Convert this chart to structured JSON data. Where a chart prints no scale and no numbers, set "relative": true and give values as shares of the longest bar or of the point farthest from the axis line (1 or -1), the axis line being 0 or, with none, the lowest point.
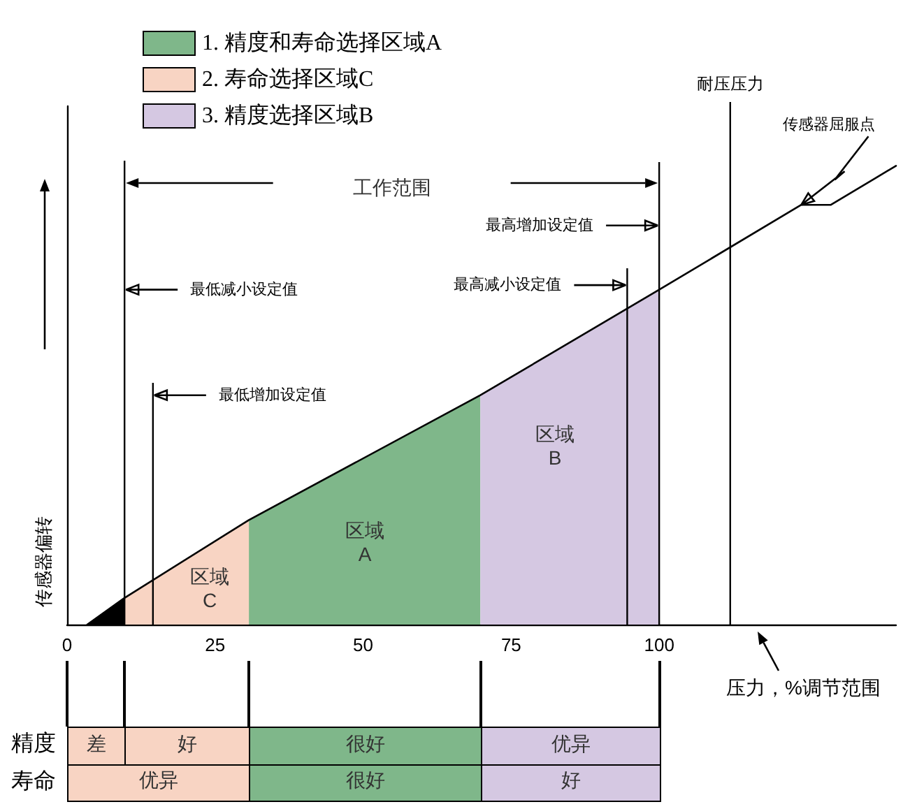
{
  "chart_data": [
    {
      "type": "line",
      "xlabel": "压力，%调节范围",
      "ylabel": "传感器偏转",
      "relative": true,
      "xlim": [
        0,
        140
      ],
      "xticks": [
        0,
        25,
        50,
        75,
        100
      ],
      "tick_labels": "x",
      "legend": "top left",
      "series": [
        {
          "name": "1. 精度和寿命选择区域A",
          "type": "area",
          "color": "#7fb78a",
          "x": [
            30.7,
            69.8
          ],
          "values": [
            0.228,
            0.5
          ]
        },
        {
          "name": "2. 寿命选择区域C",
          "type": "area",
          "color": "#f8d4c3",
          "x": [
            9.7,
            30.7
          ],
          "values": [
            0.058,
            0.228
          ]
        },
        {
          "name": "3. 精度选择区域B",
          "type": "area",
          "color": "#d5c8e2",
          "x": [
            69.8,
            100
          ],
          "values": [
            0.5,
            0.73
          ]
        },
        {
          "type": "area",
          "color": "#000000",
          "x": [
            3.4,
            9.7
          ],
          "values": [
            0,
            0.058
          ]
        },
        {
          "color": "#000000",
          "x": [
            3.4,
            9.7,
            30.7,
            69.8,
            100,
            124,
            129,
            140
          ],
          "values": [
            0,
            0.058,
            0.228,
            0.5,
            0.73,
            0.915,
            0.915,
            1
          ]
        }
      ],
      "ref_lines": [
        {
          "axis": "x",
          "value": 9.7
        },
        {
          "axis": "x",
          "value": 14.5
        },
        {
          "axis": "x",
          "value": 94.6
        },
        {
          "axis": "x",
          "value": 100
        },
        {
          "axis": "x",
          "value": 112,
          "label": "耐压压力"
        }
      ],
      "annotations": [
        "工作范围",
        "区域\nC",
        "区域\nA",
        "区域\nB",
        {
          "text": "最低减小设定值",
          "x": 9.7,
          "y": 0.73
        },
        {
          "text": "最低增加设定值",
          "x": 14.5,
          "y": 0.5
        },
        {
          "text": "最高减小设定值",
          "x": 94.6,
          "y": 0.74
        },
        {
          "text": "最高增加设定值",
          "x": 100,
          "y": 0.87
        },
        {
          "text": "传感器屈服点",
          "x": 124,
          "y": 0.915
        }
      ]
    },
    {
      "type": "other",
      "y_categories": [
        "精度",
        "寿命"
      ],
      "cell_labels": [
        [
          "差",
          "好",
          "很好",
          "优异"
        ],
        [
          "优异",
          "很好",
          "好"
        ]
      ]
    }
  ]
}
